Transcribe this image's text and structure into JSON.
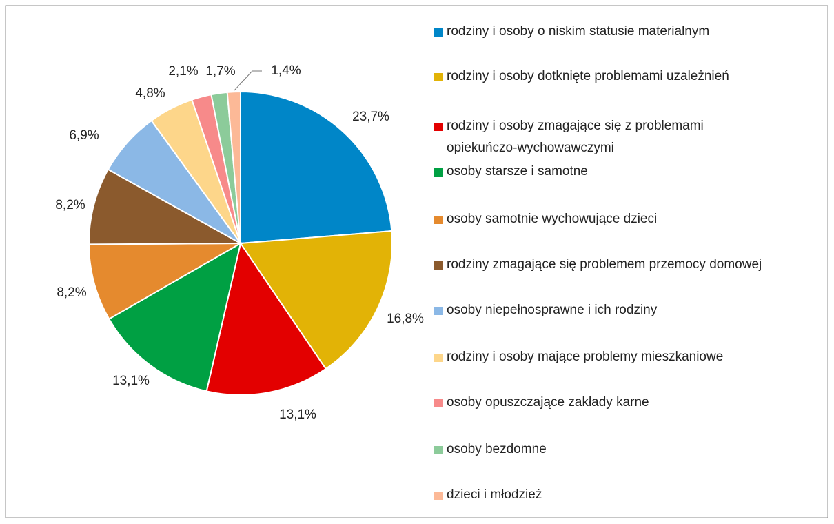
{
  "chart_data": {
    "type": "pie",
    "categories": [
      "rodziny i osoby o niskim statusie materialnym",
      "rodziny i osoby dotknięte problemami uzależnień",
      "rodziny i osoby zmagające się z problemami opiekuńczo-wychowawczymi",
      "osoby starsze i samotne",
      "osoby samotnie wychowujące dzieci",
      "rodziny zmagające się problemem przemocy domowej",
      "osoby niepełnosprawne i ich rodziny",
      "rodziny i osoby mające problemy mieszkaniowe",
      "osoby opuszczające zakłady karne",
      "osoby bezdomne",
      "dzieci i młodzież"
    ],
    "values": [
      23.7,
      16.8,
      13.1,
      13.1,
      8.2,
      8.2,
      6.9,
      4.8,
      2.1,
      1.7,
      1.4
    ],
    "value_labels": [
      "23,7%",
      "16,8%",
      "13,1%",
      "13,1%",
      "8,2%",
      "8,2%",
      "6,9%",
      "4,8%",
      "2,1%",
      "1,7%",
      "1,4%"
    ],
    "colors": [
      "#0086c8",
      "#e2b306",
      "#e30000",
      "#00a043",
      "#e58a2e",
      "#8b5a2d",
      "#8bb8e6",
      "#fdd68a",
      "#f78a8a",
      "#8ccb9a",
      "#fcb997"
    ],
    "legend": "right"
  }
}
